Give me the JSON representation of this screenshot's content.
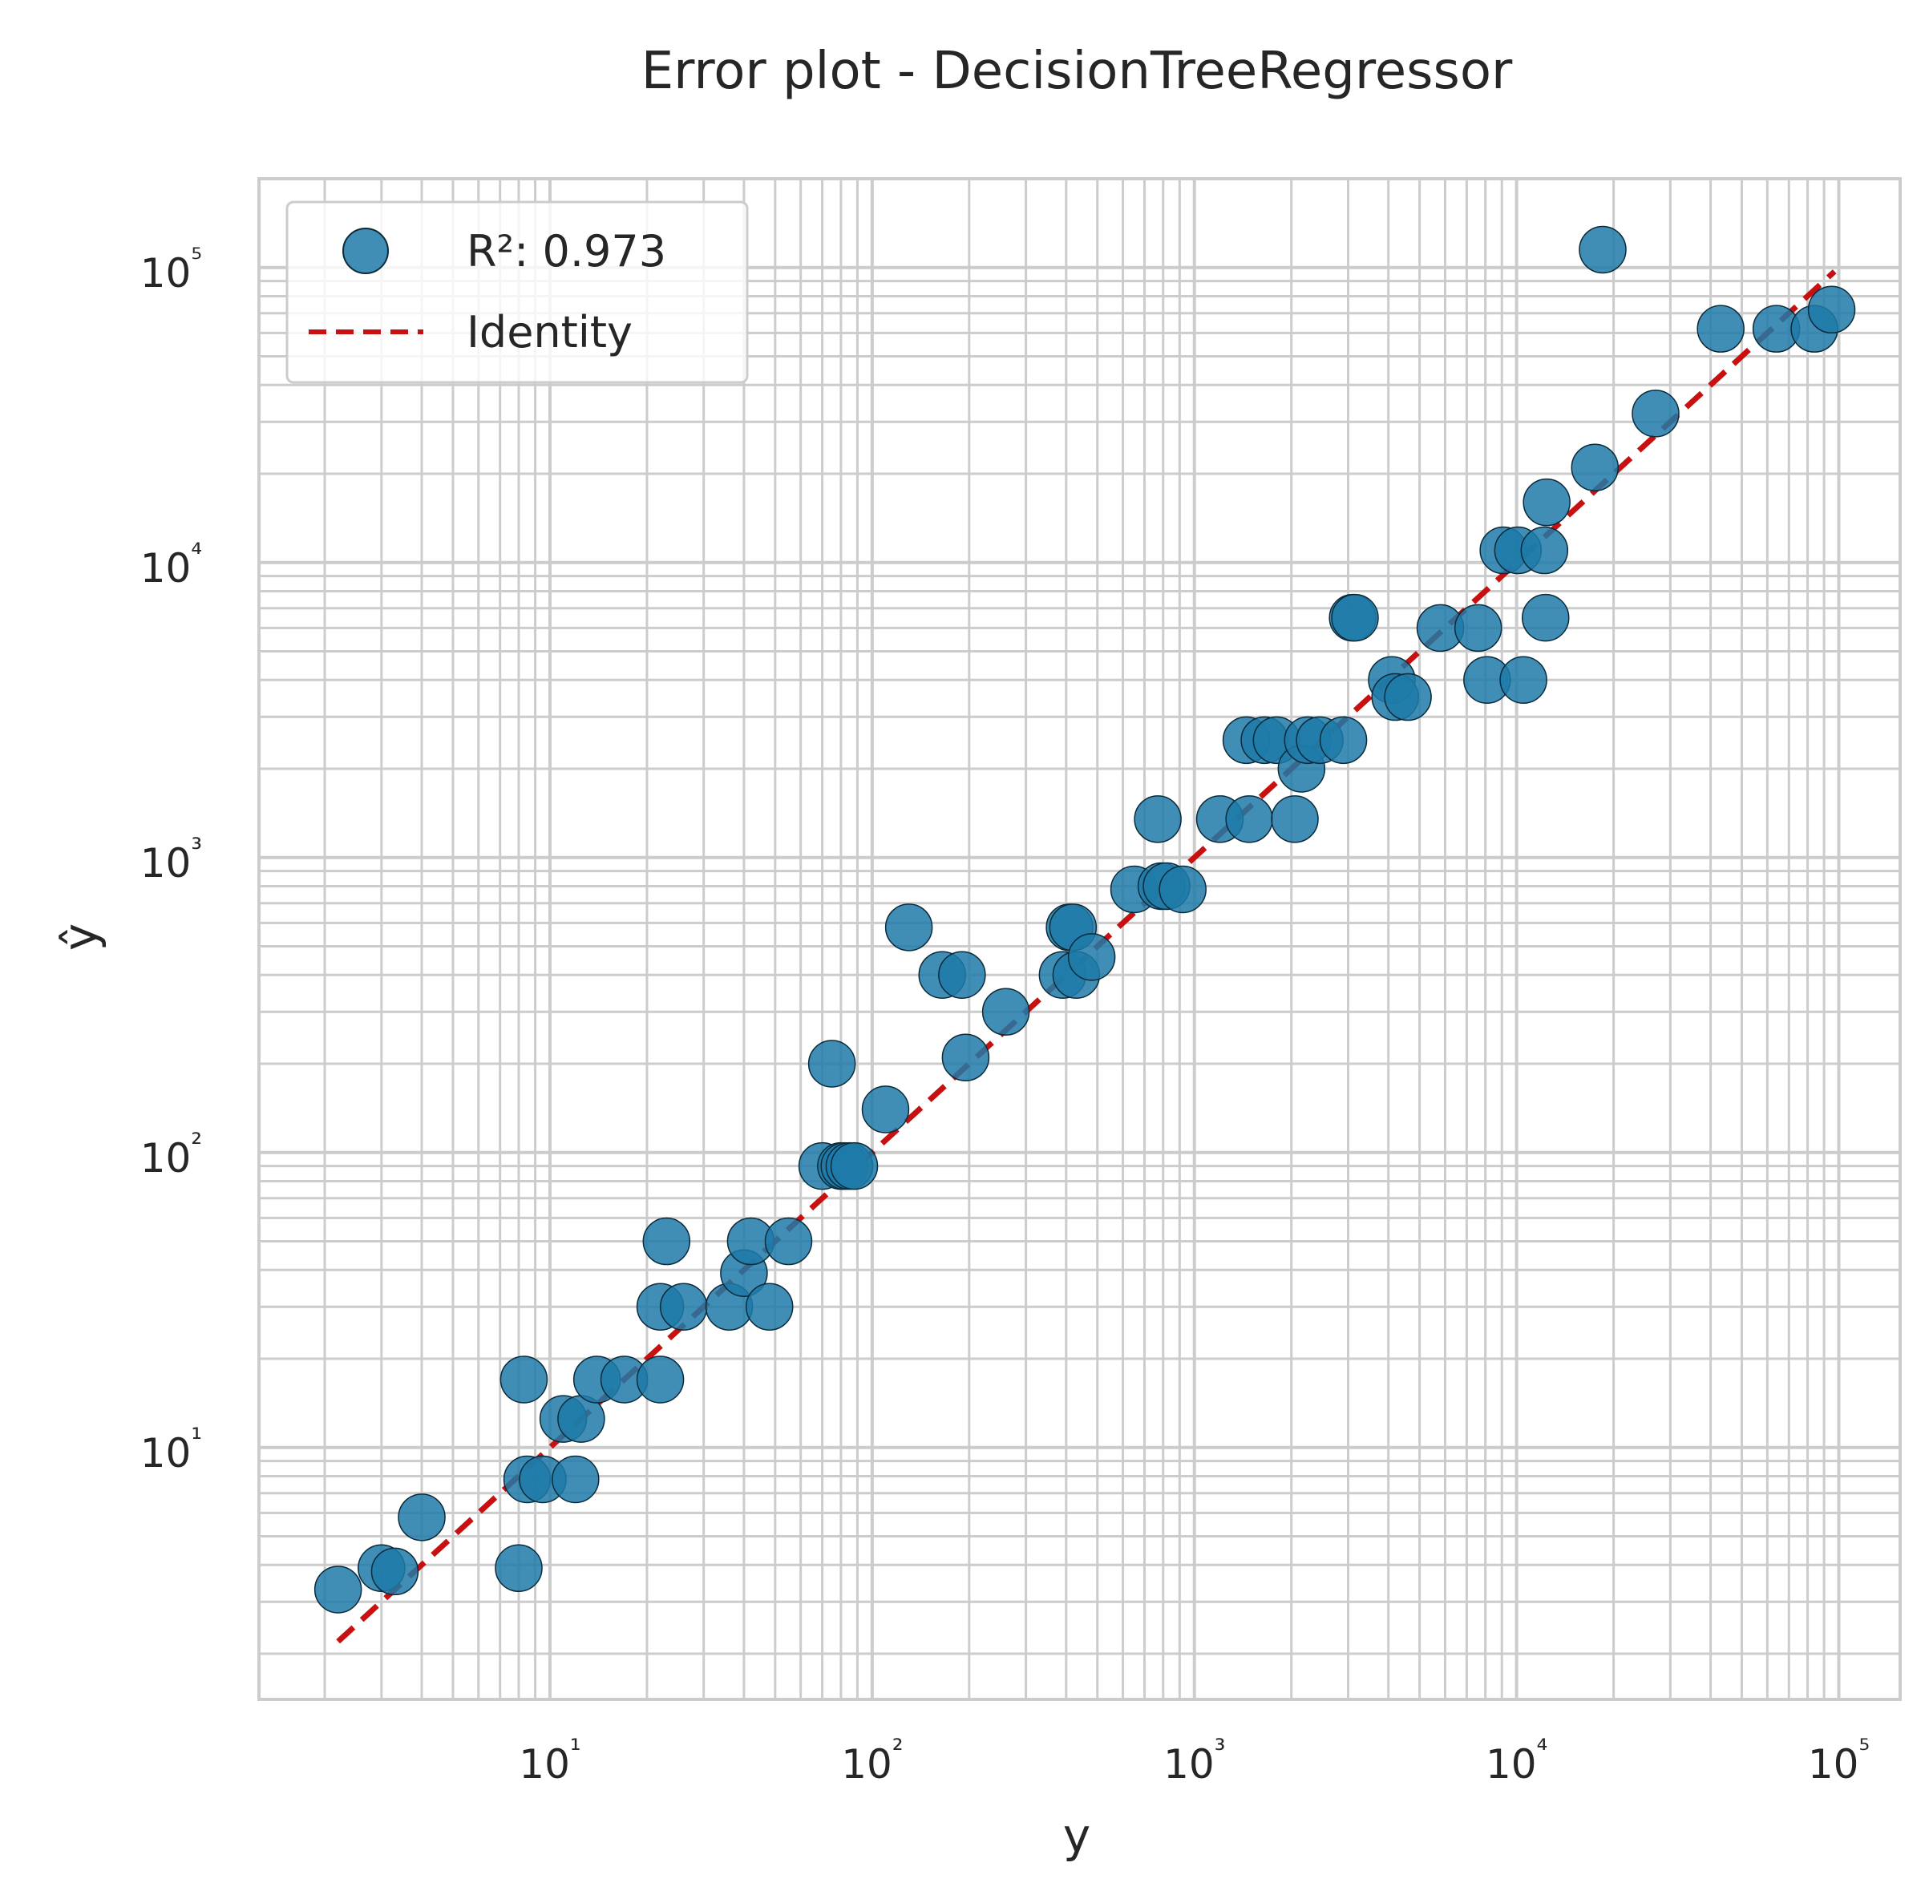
{
  "chart_data": {
    "type": "scatter",
    "title": "Error plot - DecisionTreeRegressor",
    "xlabel": "y",
    "ylabel": "ŷ",
    "xscale": "log",
    "yscale": "log",
    "xlim": [
      1.25,
      155000
    ],
    "ylim": [
      1.4,
      200000
    ],
    "x_ticks": [
      10,
      100,
      1000,
      10000,
      100000
    ],
    "x_tick_labels": [
      "10¹",
      "10²",
      "10³",
      "10⁴",
      "10⁵"
    ],
    "y_ticks": [
      10,
      100,
      1000,
      10000,
      100000
    ],
    "y_tick_labels": [
      "10¹",
      "10²",
      "10³",
      "10⁴",
      "10⁵"
    ],
    "grid": true,
    "legend_position": "top-left",
    "legend": [
      {
        "label": "R²: 0.973",
        "kind": "marker"
      },
      {
        "label": "Identity",
        "kind": "dashed-line"
      }
    ],
    "colors": {
      "points": "#1f7aa8",
      "point_edge": "#0b2a3a",
      "identity": "#c81010",
      "grid": "#cccccc",
      "frame": "#cccccc",
      "text": "#262626"
    },
    "identity_line": {
      "x": [
        2.2,
        97000
      ],
      "y": [
        2.2,
        97000
      ]
    },
    "series": [
      {
        "name": "R²: 0.973",
        "points": [
          [
            2.2,
            3.3
          ],
          [
            3,
            3.9
          ],
          [
            3.3,
            3.8
          ],
          [
            4,
            5.8
          ],
          [
            8,
            3.9
          ],
          [
            8.3,
            17
          ],
          [
            8.5,
            7.8
          ],
          [
            9.5,
            7.8
          ],
          [
            11,
            12.5
          ],
          [
            12,
            7.8
          ],
          [
            12.5,
            12.5
          ],
          [
            14,
            17
          ],
          [
            17,
            17
          ],
          [
            22,
            17
          ],
          [
            22,
            30
          ],
          [
            23,
            50
          ],
          [
            26,
            30
          ],
          [
            36,
            30
          ],
          [
            40,
            39
          ],
          [
            42,
            50
          ],
          [
            48,
            30
          ],
          [
            55,
            50
          ],
          [
            70,
            90
          ],
          [
            75,
            200
          ],
          [
            80,
            90
          ],
          [
            82,
            90
          ],
          [
            85,
            90
          ],
          [
            88,
            90
          ],
          [
            110,
            140
          ],
          [
            130,
            580
          ],
          [
            165,
            400
          ],
          [
            190,
            400
          ],
          [
            195,
            210
          ],
          [
            260,
            300
          ],
          [
            390,
            400
          ],
          [
            410,
            580
          ],
          [
            420,
            580
          ],
          [
            430,
            400
          ],
          [
            480,
            460
          ],
          [
            650,
            780
          ],
          [
            770,
            1350
          ],
          [
            790,
            800
          ],
          [
            820,
            800
          ],
          [
            920,
            780
          ],
          [
            1200,
            1350
          ],
          [
            1450,
            2500
          ],
          [
            1480,
            1350
          ],
          [
            1650,
            2500
          ],
          [
            1800,
            2500
          ],
          [
            2050,
            1350
          ],
          [
            2150,
            2000
          ],
          [
            2250,
            2500
          ],
          [
            2450,
            2500
          ],
          [
            2900,
            2500
          ],
          [
            3100,
            6500
          ],
          [
            3150,
            6500
          ],
          [
            4100,
            4000
          ],
          [
            4200,
            3500
          ],
          [
            4600,
            3500
          ],
          [
            5800,
            6000
          ],
          [
            7600,
            6000
          ],
          [
            8100,
            4000
          ],
          [
            9100,
            11000
          ],
          [
            10100,
            11000
          ],
          [
            10500,
            4000
          ],
          [
            12200,
            11000
          ],
          [
            12300,
            6500
          ],
          [
            12400,
            16000
          ],
          [
            17500,
            21000
          ],
          [
            18500,
            115000
          ],
          [
            27000,
            32000
          ],
          [
            43000,
            62000
          ],
          [
            64000,
            62000
          ],
          [
            84000,
            62000
          ],
          [
            95000,
            72000
          ]
        ]
      }
    ]
  }
}
